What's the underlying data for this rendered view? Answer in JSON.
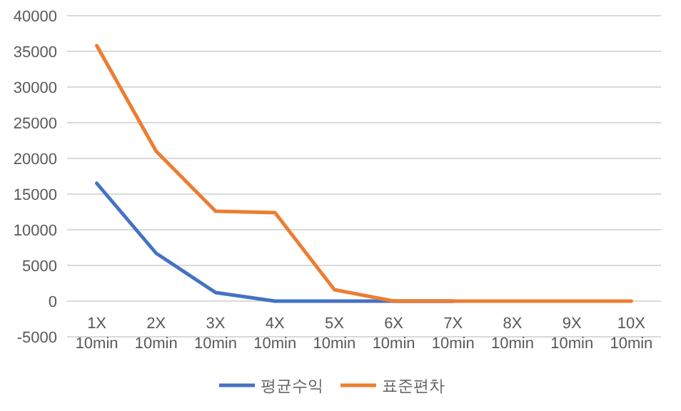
{
  "chart_data": {
    "type": "line",
    "categories": [
      "1X\n10min",
      "2X\n10min",
      "3X\n10min",
      "4X\n10min",
      "5X\n10min",
      "6X\n10min",
      "7X\n10min",
      "8X\n10min",
      "9X\n10min",
      "10X\n10min"
    ],
    "series": [
      {
        "name": "평균수익",
        "color": "#4472c4",
        "values": [
          16500,
          6700,
          1200,
          0,
          0,
          0,
          0,
          null,
          null,
          null
        ]
      },
      {
        "name": "표준편차",
        "color": "#ed7d31",
        "values": [
          35800,
          21000,
          12600,
          12400,
          1600,
          0,
          0,
          0,
          0,
          0
        ]
      }
    ],
    "ylim": [
      -5000,
      40000
    ],
    "yticks": [
      -5000,
      0,
      5000,
      10000,
      15000,
      20000,
      25000,
      30000,
      35000,
      40000
    ],
    "grid": "y",
    "legend": "bottom",
    "marker": "none",
    "line_style": "solid"
  }
}
